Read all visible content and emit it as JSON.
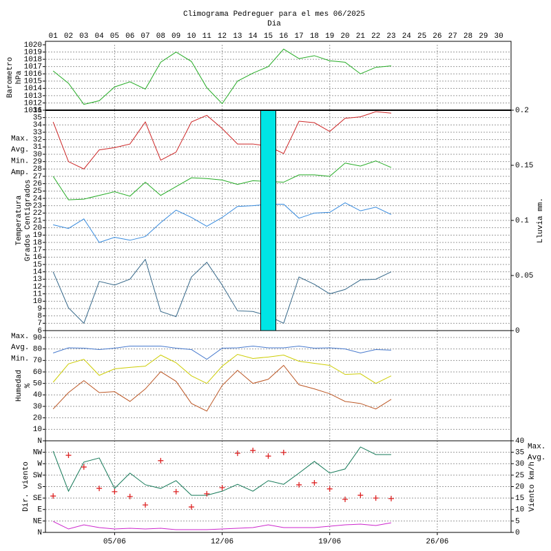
{
  "chart_data": [
    {
      "type": "line",
      "title": "Climograma Pedreguer para el mes 06/2025",
      "xlabel": "Dia",
      "ylabel": [
        "Barometro",
        "hPa"
      ],
      "x": [
        1,
        2,
        3,
        4,
        5,
        6,
        7,
        8,
        9,
        10,
        11,
        12,
        13,
        14,
        15,
        16,
        17,
        18,
        19,
        20,
        21,
        22,
        23
      ],
      "xlim": [
        0.5,
        30.8
      ],
      "xticks": [
        {
          "value": 1,
          "label": "01"
        },
        {
          "value": 2,
          "label": "02"
        },
        {
          "value": 3,
          "label": "03"
        },
        {
          "value": 4,
          "label": "04"
        },
        {
          "value": 5,
          "label": "05"
        },
        {
          "value": 6,
          "label": "06"
        },
        {
          "value": 7,
          "label": "07"
        },
        {
          "value": 8,
          "label": "08"
        },
        {
          "value": 9,
          "label": "09"
        },
        10,
        11,
        12,
        13,
        14,
        15,
        16,
        17,
        18,
        19,
        20,
        21,
        22,
        23,
        24,
        25,
        26,
        27,
        28,
        29,
        30
      ],
      "ylim": [
        1011,
        1020
      ],
      "yticks": [
        1011,
        1012,
        1013,
        1014,
        1015,
        1016,
        1017,
        1018,
        1019,
        1020
      ],
      "grid": true,
      "series": [
        {
          "color": "#22aa22",
          "values": [
            1016.4,
            1014.7,
            1011.8,
            1012.3,
            1014.2,
            1014.9,
            1013.9,
            1017.6,
            1019,
            1017.7,
            1014.1,
            1011.9,
            1015,
            1016.1,
            1017,
            1019.4,
            1018.1,
            1018.5,
            1017.8,
            1017.6,
            1016,
            1016.9,
            1017.1
          ]
        }
      ]
    },
    {
      "type": "line",
      "ylabel": [
        "Temperatura",
        "Grados Centigrados"
      ],
      "y2label": "Lluvia mm.",
      "x": [
        1,
        2,
        3,
        4,
        5,
        6,
        7,
        8,
        9,
        10,
        11,
        12,
        13,
        14,
        15,
        16,
        17,
        18,
        19,
        20,
        21,
        22,
        23
      ],
      "xlim": [
        0.5,
        30.8
      ],
      "ylim": [
        6,
        36
      ],
      "yticks": [
        6,
        7,
        8,
        9,
        10,
        11,
        12,
        13,
        14,
        15,
        16,
        17,
        18,
        19,
        20,
        21,
        22,
        23,
        24,
        25,
        26,
        27,
        28,
        29,
        30,
        31,
        32,
        33,
        34,
        35,
        36
      ],
      "y2lim": [
        0,
        0.2
      ],
      "y2ticks": [
        0,
        0.05,
        0.1,
        0.15,
        0.2
      ],
      "grid": true,
      "legend": "left",
      "series": [
        {
          "name": "Max.",
          "color": "#cc2222",
          "values": [
            34.4,
            29,
            28,
            30.6,
            30.9,
            31.4,
            34.4,
            29.2,
            30.3,
            34.4,
            35.3,
            33.5,
            31.4,
            31.4,
            31.1,
            30.1,
            34.5,
            34.3,
            33.1,
            34.9,
            35.1,
            35.8,
            35.6
          ]
        },
        {
          "name": "Avg.",
          "color": "#22aa22",
          "values": [
            27,
            23.8,
            23.9,
            24.4,
            24.9,
            24.3,
            26.2,
            24.4,
            25.6,
            26.8,
            26.7,
            26.5,
            25.9,
            26.4,
            26.3,
            26.2,
            27.2,
            27.2,
            27,
            28.8,
            28.4,
            29.1,
            28.2
          ]
        },
        {
          "name": "Min.",
          "color": "#3388dd",
          "values": [
            20.4,
            19.9,
            21.2,
            18,
            18.7,
            18.3,
            18.8,
            20.7,
            22.4,
            21.4,
            20.2,
            21.4,
            22.9,
            23,
            23.2,
            23.2,
            21.3,
            22,
            22.1,
            23.4,
            22.3,
            22.8,
            21.8
          ]
        },
        {
          "name": "Amp.",
          "color": "#336688",
          "values": [
            14,
            9.1,
            7,
            12.7,
            12.2,
            13,
            15.7,
            8.6,
            7.9,
            13.3,
            15.3,
            12.2,
            8.7,
            8.6,
            8,
            7,
            13.3,
            12.3,
            11,
            11.6,
            12.9,
            13,
            14
          ]
        },
        {
          "type": "bar",
          "axis": "y2",
          "color": "#00e5e5",
          "values": [
            0,
            0,
            0,
            0,
            0,
            0,
            0,
            0,
            0,
            0,
            0,
            0,
            0,
            0,
            0.2,
            0,
            0,
            0,
            0,
            0,
            0,
            0,
            0
          ]
        }
      ]
    },
    {
      "type": "line",
      "ylabel": [
        "Humedad",
        "%"
      ],
      "x": [
        1,
        2,
        3,
        4,
        5,
        6,
        7,
        8,
        9,
        10,
        11,
        12,
        13,
        14,
        15,
        16,
        17,
        18,
        19,
        20,
        21,
        22,
        23
      ],
      "xlim": [
        0.5,
        30.8
      ],
      "ylim": [
        0,
        96
      ],
      "yticks": [
        10,
        20,
        30,
        40,
        50,
        60,
        70,
        80,
        90
      ],
      "grid": true,
      "legend": "left",
      "series": [
        {
          "name": "Max.",
          "color": "#4477cc",
          "values": [
            76.5,
            81,
            80.7,
            79.5,
            80.7,
            82.5,
            82.5,
            82.5,
            80.7,
            79.5,
            71,
            80.7,
            81,
            82.5,
            81,
            81,
            82.5,
            80.7,
            81,
            80,
            76.5,
            79.5,
            79
          ]
        },
        {
          "name": "Avg.",
          "color": "#cccc00",
          "values": [
            51,
            67,
            71,
            57,
            62.7,
            64,
            65,
            74.7,
            68,
            56.6,
            50,
            65,
            75.3,
            71.7,
            73,
            74.7,
            69.3,
            67.5,
            65.7,
            57.8,
            58.4,
            50,
            56.6
          ]
        },
        {
          "name": "Min.",
          "color": "#bb5522",
          "values": [
            27.7,
            42,
            52.4,
            42,
            42.8,
            34.3,
            45.2,
            60.2,
            51.8,
            32.5,
            25.9,
            48.2,
            61.4,
            50,
            53.6,
            65.7,
            48.8,
            45.2,
            41,
            34.3,
            32.5,
            27.7,
            36.1
          ]
        }
      ]
    },
    {
      "type": "line",
      "ylabel": [
        "Dir. viento"
      ],
      "y2label": "Viento km/h",
      "x": [
        1,
        2,
        3,
        4,
        5,
        6,
        7,
        8,
        9,
        10,
        11,
        12,
        13,
        14,
        15,
        16,
        17,
        18,
        19,
        20,
        21,
        22,
        23
      ],
      "xlim": [
        0.5,
        30.8
      ],
      "xticks": [
        {
          "value": 5,
          "label": "05/06"
        },
        {
          "value": 12,
          "label": "12/06"
        },
        {
          "value": 19,
          "label": "19/06"
        },
        {
          "value": 26,
          "label": "26/06"
        }
      ],
      "ylim": [
        0,
        360
      ],
      "yticks": [
        {
          "value": 0,
          "label": "N"
        },
        {
          "value": 45,
          "label": "NE"
        },
        {
          "value": 90,
          "label": "E"
        },
        {
          "value": 135,
          "label": "SE"
        },
        {
          "value": 180,
          "label": "S"
        },
        {
          "value": 225,
          "label": "SW"
        },
        {
          "value": 270,
          "label": "W"
        },
        {
          "value": 315,
          "label": "NW"
        },
        {
          "value": 360,
          "label": "N"
        }
      ],
      "y2lim": [
        0,
        40
      ],
      "y2ticks": [
        0,
        5,
        10,
        15,
        20,
        25,
        30,
        35,
        40
      ],
      "grid": true,
      "legend": "right",
      "series": [
        {
          "name": "Max.",
          "color": "#117755",
          "axis": "y2",
          "values": [
            35.5,
            18,
            30.7,
            32.5,
            19.2,
            25.9,
            20.8,
            19.2,
            22.6,
            16.2,
            16.2,
            18,
            21,
            18,
            22.6,
            21,
            25.9,
            31,
            25.9,
            27.7,
            37.3,
            34,
            34
          ]
        },
        {
          "name": "Avg.",
          "color": "#cc22cc",
          "axis": "y2",
          "values": [
            4.8,
            1.5,
            3.3,
            2.1,
            1.5,
            1.8,
            1.5,
            1.8,
            1.2,
            1.2,
            1.2,
            1.5,
            1.8,
            2.1,
            3.3,
            2.1,
            2.1,
            2.1,
            2.7,
            3.3,
            3.6,
            3,
            4.2
          ]
        },
        {
          "marker": "+",
          "color": "#dd2222",
          "values": [
            143,
            303,
            257,
            173,
            160,
            141,
            108,
            282,
            160,
            100,
            152,
            176,
            311,
            322,
            300,
            314,
            187,
            195,
            171,
            130,
            146,
            135,
            133
          ]
        }
      ]
    }
  ]
}
